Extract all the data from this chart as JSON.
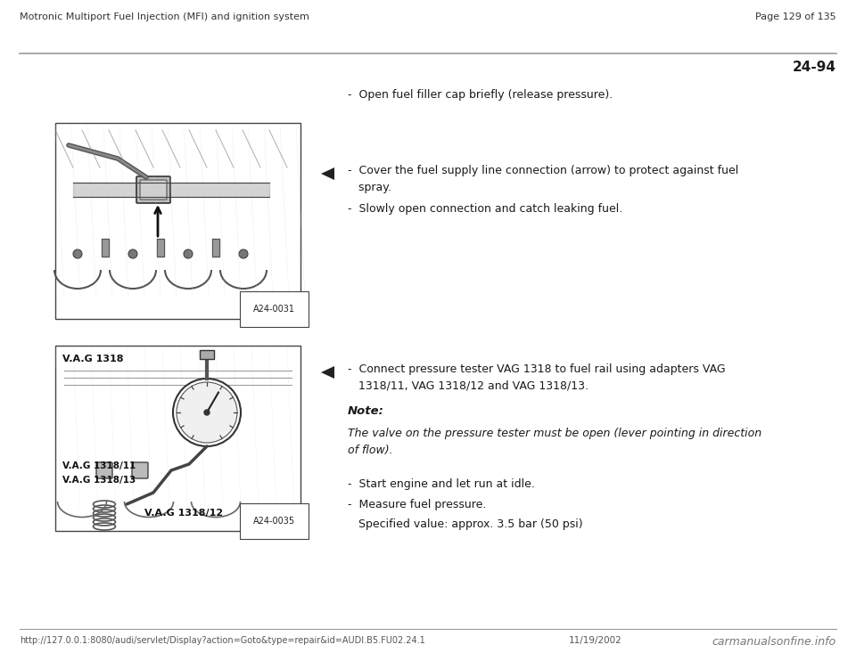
{
  "header_left": "Motronic Multiport Fuel Injection (MFI) and ignition system",
  "header_right": "Page 129 of 135",
  "section_number": "24-94",
  "footer_left": "http://127.0.0.1:8080/audi/servlet/Display?action=Goto&type=repair&id=AUDI.B5.FU02.24.1",
  "footer_date": "11/19/2002",
  "footer_right": "carmanualsonfine.info",
  "bullet1": "-  Open fuel filler cap briefly (release pressure).",
  "bullet2a": "-  Cover the fuel supply line connection (arrow) to protect against fuel\n   spray.",
  "bullet2b": "-  Slowly open connection and catch leaking fuel.",
  "bullet3": "-  Connect pressure tester VAG 1318 to fuel rail using adapters VAG\n   1318/11, VAG 1318/12 and VAG 1318/13.",
  "note_label": "Note:",
  "note_text": "The valve on the pressure tester must be open (lever pointing in direction\nof flow).",
  "bullet4": "-  Start engine and let run at idle.",
  "bullet5": "-  Measure fuel pressure.",
  "specified": "   Specified value: approx. 3.5 bar (50 psi)",
  "img1_label": "A24-0031",
  "img2_label": "A24-0035",
  "img2_text1": "V.A.G 1318",
  "img2_text2": "V.A.G 1318/11",
  "img2_text3": "V.A.G 1318/13",
  "img2_text4": "V.A.G 1318/12",
  "bg_color": "#ffffff",
  "text_color": "#1a1a1a",
  "header_color": "#333333",
  "line_color": "#999999",
  "img_bg": "#e8e8e8",
  "img_edge": "#444444"
}
